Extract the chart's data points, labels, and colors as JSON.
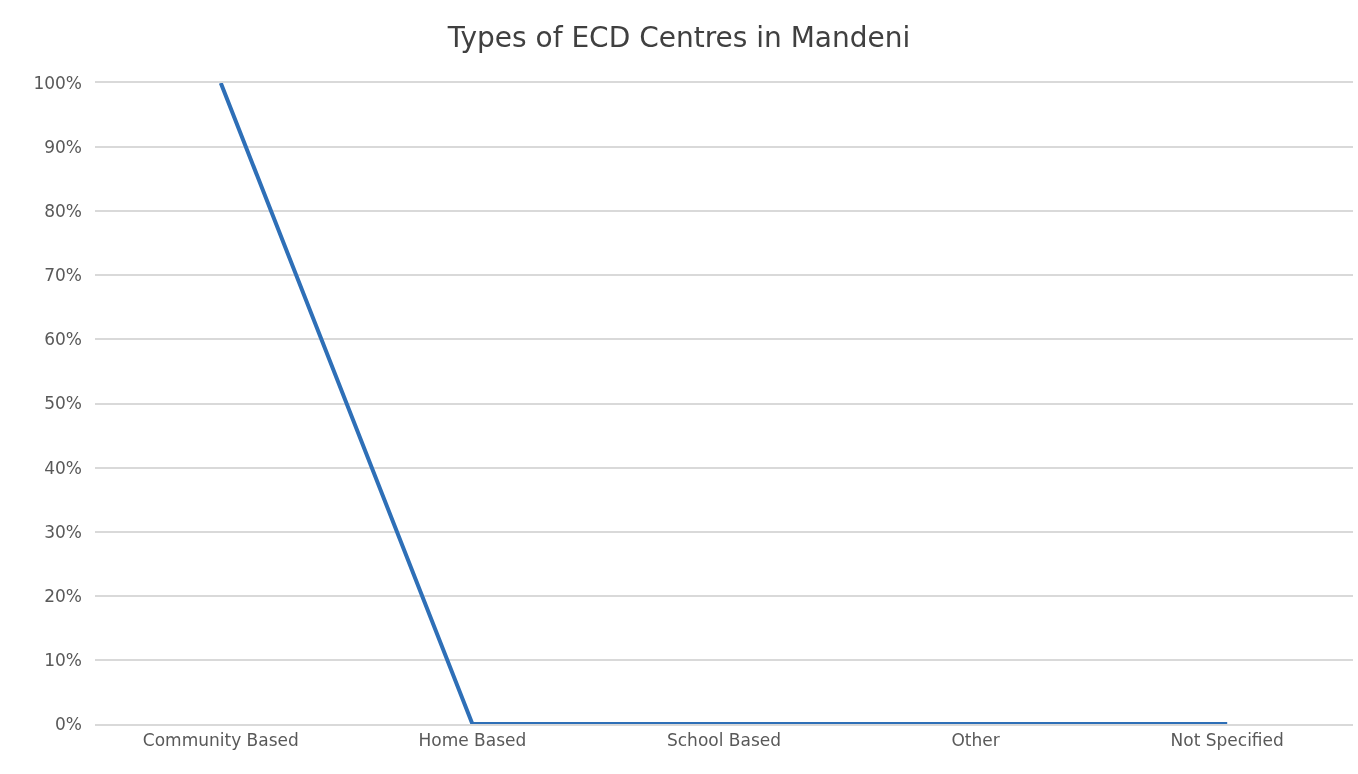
{
  "chart_data": {
    "type": "line",
    "title": "Types of ECD Centres in Mandeni",
    "categories": [
      "Community Based",
      "Home Based",
      "School Based",
      "Other",
      "Not Specified"
    ],
    "series": [
      {
        "color": "#2e6fb7",
        "values": [
          100,
          0,
          0,
          0,
          0
        ]
      }
    ],
    "ylim": [
      0,
      100
    ],
    "yticks": [
      {
        "value": 0,
        "label": "0%"
      },
      {
        "value": 10,
        "label": "10%"
      },
      {
        "value": 20,
        "label": "20%"
      },
      {
        "value": 30,
        "label": "30%"
      },
      {
        "value": 40,
        "label": "40%"
      },
      {
        "value": 50,
        "label": "50%"
      },
      {
        "value": 60,
        "label": "60%"
      },
      {
        "value": 70,
        "label": "70%"
      },
      {
        "value": 80,
        "label": "80%"
      },
      {
        "value": 90,
        "label": "90%"
      },
      {
        "value": 100,
        "label": "100%"
      }
    ],
    "grid": "y",
    "marker": "none",
    "line_style": "solid"
  }
}
